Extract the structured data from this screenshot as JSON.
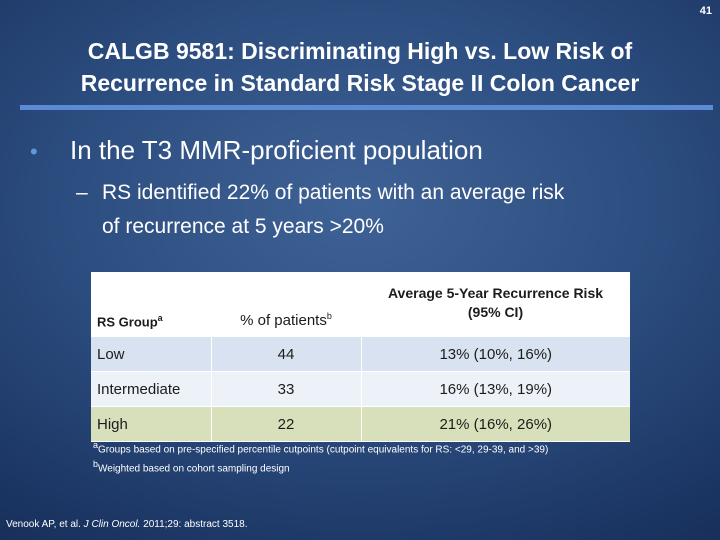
{
  "slide": {
    "number": "41",
    "title_line1": "CALGB 9581: Discriminating High vs. Low Risk of",
    "title_line2": "Recurrence in Standard Risk Stage II Colon Cancer"
  },
  "bullets": {
    "level1_marker": "•",
    "level1": "In the T3 MMR-proficient population",
    "level2_marker": "–",
    "level2_line1": "RS identified 22% of patients with an average risk",
    "level2_line2": "of recurrence at 5 years >20%"
  },
  "table": {
    "headers": {
      "group": "RS Group",
      "group_sup": "a",
      "patients": "% of patients",
      "patients_sup": "b",
      "risk_line1": "Average 5-Year Recurrence Risk",
      "risk_line2": "(95% CI)"
    },
    "rows": [
      {
        "group": "Low",
        "patients": "44",
        "risk": "13% (10%, 16%)"
      },
      {
        "group": "Intermediate",
        "patients": "33",
        "risk": "16% (13%, 19%)"
      },
      {
        "group": "High",
        "patients": "22",
        "risk": "21% (16%, 26%)"
      }
    ],
    "row_colors": [
      "#d9e2f0",
      "#edf1f8",
      "#d7e0bb"
    ]
  },
  "footnotes": {
    "a_marker": "a",
    "a_text": "Groups based on pre-specified percentile cutpoints (cutpoint equivalents for RS: <29, 29-39, and >39)",
    "b_marker": "b",
    "b_text": "Weighted based on cohort sampling design"
  },
  "citation": {
    "authors": "Venook AP, et al.",
    "journal": "J Clin Oncol.",
    "details": "2011;29: abstract 3518."
  },
  "colors": {
    "background": "#2b4c7e",
    "title_rule": "#5b8bd4",
    "bullet_dot": "#5b9bd5"
  }
}
